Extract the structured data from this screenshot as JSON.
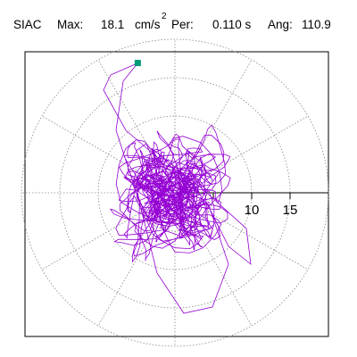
{
  "header": {
    "station": "SIAC",
    "max_label": "Max:",
    "max_value": "18.1",
    "max_unit": "cm/s",
    "max_unit_exp": "2",
    "per_label": "Per:",
    "per_value": "0.110 s",
    "ang_label": "Ang:",
    "ang_value": "110.9"
  },
  "colors": {
    "trace": "#9400d3",
    "marker": "#009a78",
    "grid": "#888888",
    "frame": "#000000"
  },
  "chart_data": {
    "type": "polar-orbit",
    "rings": [
      5,
      10,
      15,
      20
    ],
    "tick_labels": [
      "10",
      "15"
    ],
    "spoke_angles_deg": [
      0,
      30,
      60,
      90,
      120,
      150,
      180,
      210,
      240,
      270,
      300,
      330
    ],
    "grid": "dotted",
    "peak_point": {
      "radius": 18.1,
      "angle_deg": 110.9
    }
  }
}
